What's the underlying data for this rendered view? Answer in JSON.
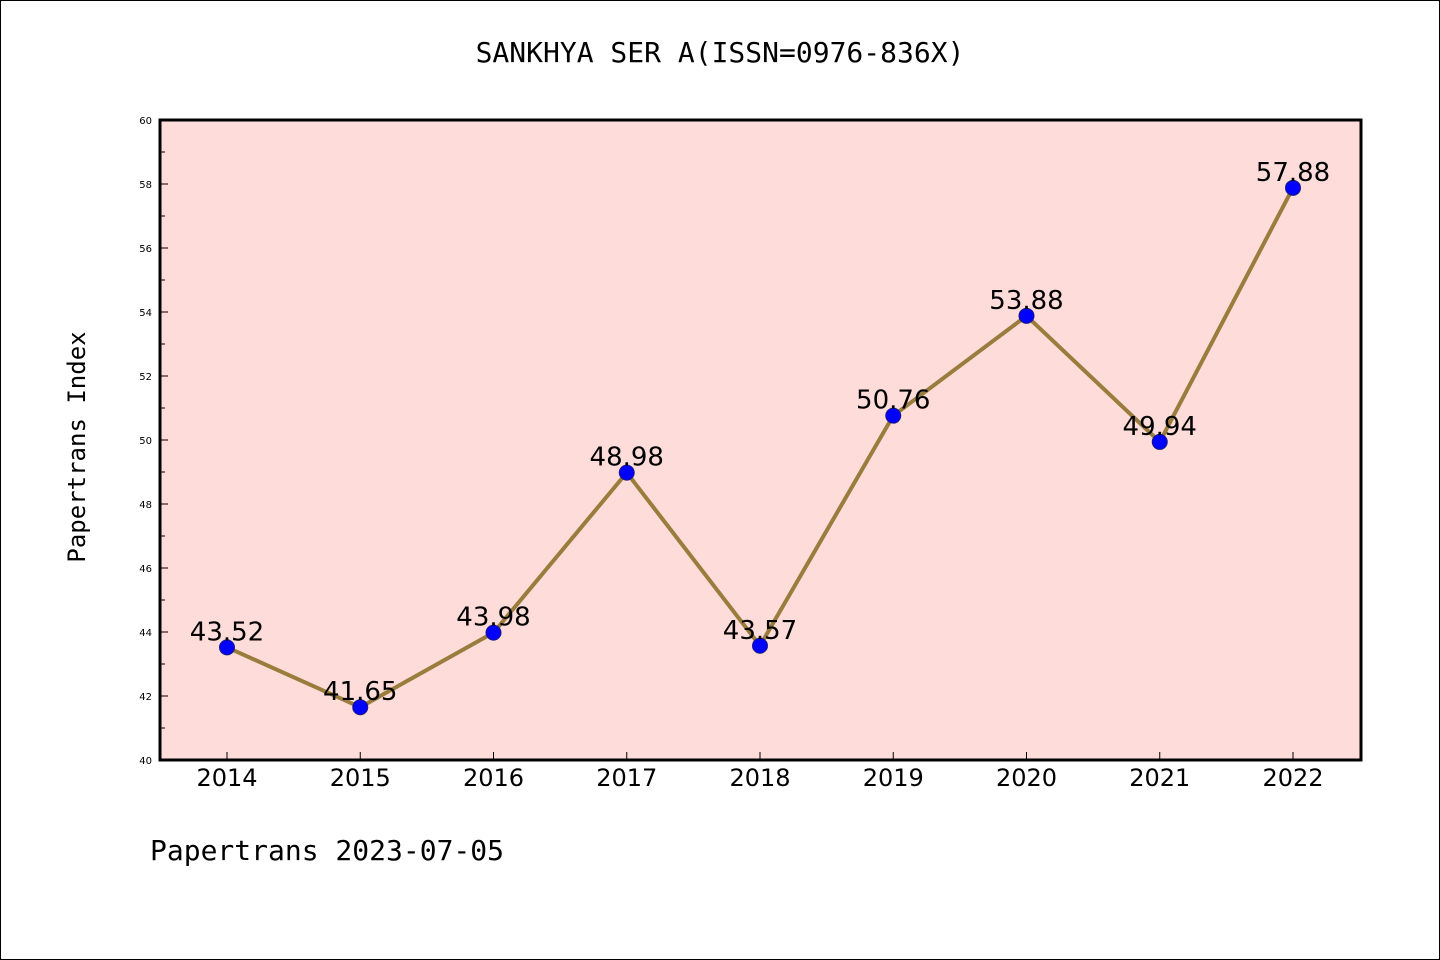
{
  "title": "SANKHYA SER A(ISSN=0976-836X)",
  "footer": "Papertrans 2023-07-05",
  "colors": {
    "plot_background": "#FDDCDA",
    "line": "#9A7D3C",
    "marker": "#0000FF",
    "marker_edge": "#1a1a80"
  },
  "chart_data": {
    "type": "line",
    "title": "SANKHYA SER A(ISSN=0976-836X)",
    "xlabel": "",
    "ylabel": "Papertrans Index",
    "categories": [
      "2014",
      "2015",
      "2016",
      "2017",
      "2018",
      "2019",
      "2020",
      "2021",
      "2022"
    ],
    "series": [
      {
        "values": [
          43.52,
          41.65,
          43.98,
          48.98,
          43.57,
          50.76,
          53.88,
          49.94,
          57.88
        ]
      }
    ],
    "data_labels": [
      "43.52",
      "41.65",
      "43.98",
      "48.98",
      "43.57",
      "50.76",
      "53.88",
      "49.94",
      "57.88"
    ],
    "ylim": [
      40,
      60
    ],
    "yticks": [
      40,
      42,
      44,
      46,
      48,
      50,
      52,
      54,
      56,
      58,
      60
    ],
    "grid": false,
    "legend": "none"
  }
}
